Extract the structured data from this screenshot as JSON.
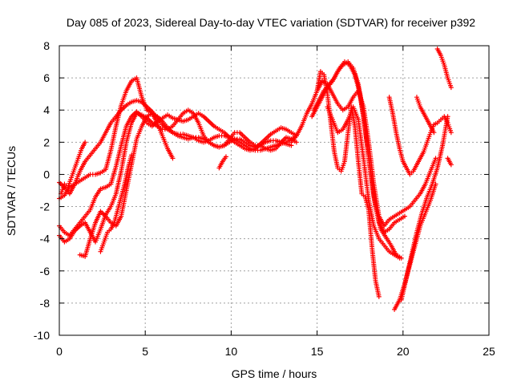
{
  "chart_data": {
    "type": "scatter",
    "title": "Day 085 of 2023, Sidereal Day-to-day VTEC variation (SDTVAR) for receiver p392",
    "xlabel": "GPS time / hours",
    "ylabel": "SDTVAR / TECUs",
    "xlim": [
      0,
      25
    ],
    "ylim": [
      -10,
      8
    ],
    "x_ticks": [
      "0",
      "5",
      "10",
      "15",
      "20",
      "25"
    ],
    "y_ticks": [
      "-10",
      "-8",
      "-6",
      "-4",
      "-2",
      "0",
      "2",
      "4",
      "6",
      "8"
    ],
    "grid": true,
    "marker": "+",
    "marker_color": "#ff0000",
    "series": [
      {
        "x": [
          0.0,
          0.3,
          0.6,
          0.9,
          1.2,
          1.5,
          1.8,
          2.1,
          2.4,
          2.7,
          3.0,
          3.3,
          3.6,
          3.9,
          4.2,
          4.5,
          4.8,
          5.1,
          5.4,
          5.7,
          6.0,
          6.3,
          6.6,
          6.9,
          7.2,
          7.5,
          7.8,
          8.1,
          8.4,
          8.7,
          9.0,
          9.3,
          9.6,
          9.9,
          10.2,
          10.5,
          10.8,
          11.1,
          11.4,
          11.7,
          12.0,
          12.3,
          12.6,
          12.9,
          13.2,
          13.5
        ],
        "y": [
          -0.5,
          -0.8,
          -1.2,
          -0.6,
          0.2,
          0.8,
          1.2,
          1.6,
          2.0,
          2.6,
          3.2,
          3.6,
          4.0,
          4.3,
          4.5,
          4.6,
          4.5,
          4.2,
          3.9,
          3.5,
          3.1,
          2.8,
          2.6,
          2.4,
          2.3,
          2.2,
          2.3,
          2.3,
          2.2,
          2.0,
          1.8,
          1.7,
          1.8,
          2.0,
          2.2,
          2.2,
          2.0,
          1.8,
          1.7,
          1.8,
          2.0,
          2.1,
          2.1,
          2.0,
          1.9,
          1.8
        ]
      },
      {
        "x": [
          0.0,
          0.3,
          0.6,
          0.9,
          1.2,
          1.5,
          1.8,
          2.1,
          2.4,
          2.7,
          3.0,
          3.3,
          3.6,
          3.9,
          4.2,
          4.5,
          4.8,
          5.1,
          5.4,
          5.7,
          6.0,
          6.3,
          6.6,
          6.9,
          7.2,
          7.5,
          7.8,
          8.1,
          8.4,
          8.7,
          9.0,
          9.3,
          9.6,
          9.9,
          10.2,
          10.5,
          10.8,
          11.1,
          11.4,
          11.7,
          12.0,
          12.3,
          12.6,
          12.9,
          13.2,
          13.5,
          13.8
        ],
        "y": [
          -1.5,
          -1.3,
          -0.8,
          -0.6,
          -0.4,
          -0.2,
          0.0,
          0.0,
          0.1,
          0.3,
          1.5,
          3.0,
          4.3,
          5.2,
          5.8,
          6.0,
          4.8,
          4.0,
          3.8,
          3.6,
          3.3,
          2.9,
          2.6,
          2.5,
          2.5,
          2.4,
          2.3,
          2.1,
          2.0,
          2.1,
          2.3,
          2.4,
          2.4,
          2.3,
          2.2,
          2.0,
          1.8,
          1.6,
          1.5,
          1.5,
          1.6,
          1.7,
          1.8,
          1.9,
          2.0,
          2.2,
          2.4
        ]
      },
      {
        "x": [
          0.0,
          0.3,
          0.6,
          0.9,
          1.2,
          1.5,
          1.8,
          2.1,
          2.4,
          2.7,
          3.0,
          3.3,
          3.6,
          3.9,
          4.2,
          4.5,
          4.8,
          5.1,
          5.4,
          5.7,
          6.0,
          6.3,
          6.6,
          6.9,
          7.2,
          7.5,
          7.8,
          8.1,
          8.4,
          8.7,
          9.0,
          9.3,
          9.6,
          9.9,
          10.2,
          10.5,
          10.8,
          11.1,
          11.4,
          11.7,
          12.0,
          12.3,
          12.6,
          12.9,
          13.2,
          13.5,
          13.8
        ],
        "y": [
          -3.2,
          -3.6,
          -3.8,
          -3.4,
          -3.0,
          -2.6,
          -2.2,
          -1.4,
          -0.9,
          -0.8,
          -0.6,
          0.5,
          1.8,
          3.0,
          3.6,
          3.9,
          3.6,
          3.2,
          3.0,
          3.3,
          3.5,
          3.7,
          3.5,
          3.4,
          3.3,
          3.4,
          3.6,
          3.8,
          3.6,
          3.3,
          3.0,
          2.8,
          2.6,
          2.3,
          2.0,
          1.8,
          1.6,
          1.5,
          1.6,
          1.9,
          2.2,
          2.5,
          2.7,
          2.9,
          2.8,
          2.6,
          2.4
        ]
      },
      {
        "x": [
          0.0,
          0.3,
          0.6,
          0.9,
          1.2,
          1.5,
          1.8,
          2.1,
          2.4,
          2.7,
          3.0,
          3.3,
          3.6,
          3.9,
          4.2,
          4.5,
          4.8,
          5.1,
          5.4,
          5.7,
          6.0,
          6.3,
          6.6,
          6.9,
          7.2,
          7.5,
          7.8,
          8.1,
          8.4,
          8.7,
          9.0,
          9.3,
          9.6,
          9.9,
          10.2,
          10.5,
          10.8,
          11.1,
          11.4,
          11.7,
          12.0,
          12.3,
          12.6,
          12.9,
          13.2,
          13.5,
          13.8
        ],
        "y": [
          -3.8,
          -4.2,
          -4.0,
          -3.5,
          -3.2,
          -3.0,
          -3.6,
          -4.2,
          -3.4,
          -2.5,
          -2.0,
          -1.2,
          0.2,
          2.0,
          3.2,
          3.8,
          3.7,
          3.5,
          3.2,
          3.0,
          2.8,
          2.8,
          3.0,
          3.4,
          3.8,
          4.0,
          3.8,
          3.2,
          2.4,
          2.0,
          1.8,
          1.7,
          1.8,
          2.2,
          2.6,
          2.6,
          2.3,
          2.0,
          1.8,
          1.8,
          1.6,
          1.5,
          1.6,
          2.0,
          2.3,
          2.2,
          2.0
        ]
      },
      {
        "x": [
          1.2,
          1.5,
          1.8,
          2.1,
          2.4,
          2.7,
          3.0,
          3.3,
          3.6,
          3.9,
          4.2,
          4.5,
          4.8,
          5.1,
          5.4,
          5.7,
          6.0,
          6.3,
          6.6
        ],
        "y": [
          -5.0,
          -5.1,
          -4.0,
          -3.0,
          -2.3,
          -2.6,
          -3.0,
          -3.2,
          -2.6,
          -1.0,
          0.6,
          2.2,
          3.0,
          3.6,
          3.8,
          3.2,
          2.4,
          1.6,
          1.0
        ]
      },
      {
        "x": [
          2.4,
          2.6,
          2.8,
          3.0,
          3.2,
          3.4,
          3.6,
          3.8,
          4.0,
          4.2
        ],
        "y": [
          -4.8,
          -4.2,
          -3.6,
          -3.4,
          -3.0,
          -2.2,
          -1.4,
          -0.6,
          0.4,
          1.2
        ]
      },
      {
        "x": [
          0.1,
          0.3,
          0.5,
          0.7,
          0.9,
          1.1,
          1.3,
          1.5
        ],
        "y": [
          -1.2,
          -0.6,
          -0.8,
          -0.2,
          0.4,
          1.0,
          1.6,
          2.0
        ]
      },
      {
        "x": [
          9.3,
          9.5,
          9.7
        ],
        "y": [
          0.4,
          0.8,
          1.1
        ]
      },
      {
        "x": [
          13.5,
          13.8,
          14.1,
          14.4,
          14.7,
          15.0,
          15.3,
          15.6,
          15.9,
          16.2,
          16.5,
          16.8,
          17.1,
          17.4,
          17.7,
          18.0,
          18.3,
          18.6,
          18.9,
          19.2,
          19.5,
          19.8,
          20.1,
          20.4,
          20.7,
          21.0,
          21.3,
          21.6,
          21.9
        ],
        "y": [
          2.0,
          2.4,
          3.0,
          3.8,
          4.4,
          5.2,
          5.8,
          5.6,
          5.0,
          4.4,
          4.0,
          4.2,
          4.8,
          5.2,
          4.2,
          2.0,
          -0.6,
          -2.6,
          -3.2,
          -2.8,
          -2.6,
          -2.4,
          -2.2,
          -2.0,
          -1.6,
          -1.2,
          -0.6,
          0.2,
          1.0
        ]
      },
      {
        "x": [
          14.7,
          15.0,
          15.3,
          15.6,
          15.9,
          16.2,
          16.5,
          16.8,
          17.1,
          17.4,
          17.7,
          18.0,
          18.3,
          18.6,
          18.9,
          19.2,
          19.5,
          19.8,
          20.1
        ],
        "y": [
          3.6,
          4.2,
          4.8,
          5.4,
          5.8,
          6.4,
          6.8,
          7.0,
          6.6,
          5.6,
          3.6,
          1.2,
          -1.4,
          -3.0,
          -3.6,
          -3.4,
          -3.0,
          -2.8,
          -2.6
        ]
      },
      {
        "x": [
          14.8,
          15.1,
          15.4,
          15.7,
          16.0,
          16.3,
          16.6,
          16.9,
          17.2,
          17.5,
          17.8,
          18.1,
          18.4,
          18.7,
          19.0,
          19.3,
          19.6,
          19.9
        ],
        "y": [
          4.0,
          4.6,
          5.2,
          5.6,
          6.0,
          6.6,
          7.0,
          6.8,
          6.2,
          5.0,
          2.8,
          0.2,
          -2.0,
          -3.4,
          -3.9,
          -4.4,
          -5.0,
          -5.2
        ]
      },
      {
        "x": [
          15.0,
          15.2,
          15.4,
          15.6,
          15.8,
          16.0,
          16.2,
          16.4,
          16.6,
          16.8,
          17.0,
          17.2,
          17.4,
          17.6,
          17.8,
          18.0,
          18.2,
          18.4,
          18.6
        ],
        "y": [
          5.2,
          6.4,
          6.2,
          5.0,
          3.2,
          1.4,
          0.4,
          0.2,
          0.8,
          2.6,
          4.2,
          3.0,
          0.8,
          -1.2,
          -1.4,
          -2.2,
          -4.6,
          -6.6,
          -7.6
        ]
      },
      {
        "x": [
          15.6,
          15.9,
          16.2,
          16.5,
          16.8,
          17.1,
          17.4,
          17.7,
          18.0,
          18.3,
          18.6,
          18.9,
          19.2,
          19.5,
          19.8
        ],
        "y": [
          4.2,
          3.4,
          2.6,
          2.8,
          3.4,
          4.2,
          3.4,
          1.0,
          -1.6,
          -3.2,
          -4.0,
          -4.4,
          -4.8,
          -5.0,
          -5.2
        ]
      },
      {
        "x": [
          19.5,
          19.8,
          20.1,
          20.4,
          20.7,
          21.0,
          21.3,
          21.6,
          21.9
        ],
        "y": [
          -8.4,
          -7.8,
          -6.8,
          -5.6,
          -4.4,
          -3.2,
          -2.4,
          -1.6,
          -0.6
        ]
      },
      {
        "x": [
          19.9,
          20.2,
          20.5,
          20.8,
          21.1,
          21.4,
          21.7,
          22.0,
          22.3,
          22.6
        ],
        "y": [
          -7.8,
          -6.4,
          -5.0,
          -3.6,
          -2.4,
          -1.4,
          -0.6,
          0.4,
          1.8,
          3.6
        ]
      },
      {
        "x": [
          19.2,
          19.4,
          19.6,
          19.8,
          20.0,
          20.2,
          20.4,
          20.6,
          20.8,
          21.0,
          21.2,
          21.4,
          21.6,
          21.8,
          22.0,
          22.2,
          22.4,
          22.6,
          22.8
        ],
        "y": [
          4.8,
          3.8,
          2.6,
          1.6,
          0.8,
          0.4,
          0.0,
          0.2,
          0.6,
          1.0,
          1.4,
          2.0,
          2.6,
          3.1,
          3.2,
          3.4,
          3.6,
          3.2,
          2.6
        ]
      },
      {
        "x": [
          20.8,
          21.0,
          21.2,
          21.4,
          21.6,
          21.8
        ],
        "y": [
          4.8,
          4.2,
          3.8,
          3.4,
          3.0,
          2.6
        ]
      },
      {
        "x": [
          22.0,
          22.2,
          22.4,
          22.6,
          22.8
        ],
        "y": [
          7.8,
          7.4,
          6.8,
          6.0,
          5.4
        ]
      },
      {
        "x": [
          22.6,
          22.8
        ],
        "y": [
          1.0,
          0.6
        ]
      }
    ]
  }
}
